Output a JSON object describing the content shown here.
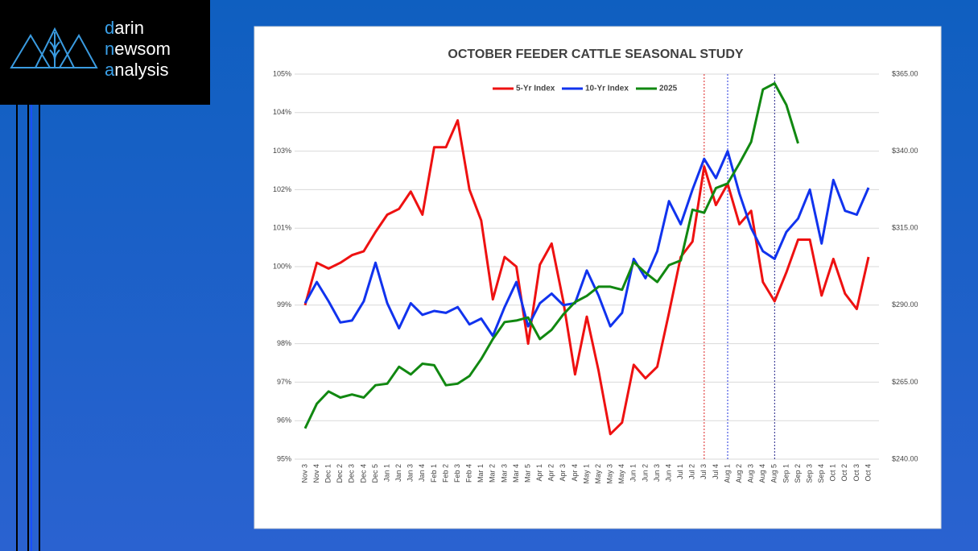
{
  "logo": [
    {
      "accent": "d",
      "rest": "arin"
    },
    {
      "accent": "n",
      "rest": "ewsom"
    },
    {
      "accent": "a",
      "rest": "nalysis"
    }
  ],
  "chart_data": {
    "type": "line",
    "title": "OCTOBER FEEDER CATTLE SEASONAL STUDY",
    "categories": [
      "Nov 3",
      "Nov 4",
      "Dec 1",
      "Dec 2",
      "Dec 3",
      "Dec 4",
      "Dec 5",
      "Jan 1",
      "Jan 2",
      "Jan 3",
      "Jan 4",
      "Feb 1",
      "Feb 2",
      "Feb 3",
      "Feb 4",
      "Mar 1",
      "Mar 2",
      "Mar 3",
      "Mar 4",
      "Mar 5",
      "Apr 1",
      "Apr 2",
      "Apr 3",
      "Apr 4",
      "May 1",
      "May 2",
      "May 3",
      "May 4",
      "Jun 1",
      "Jun 2",
      "Jun 3",
      "Jun 4",
      "Jul 1",
      "Jul 2",
      "Jul 3",
      "Jul 4",
      "Aug 1",
      "Aug 2",
      "Aug 3",
      "Aug 4",
      "Aug 5",
      "Sep 1",
      "Sep 2",
      "Sep 3",
      "Sep 4",
      "Oct 1",
      "Oct 2",
      "Oct 3",
      "Oct 4"
    ],
    "series": [
      {
        "name": "5-Yr Index",
        "color": "#ee1111",
        "values": [
          99.0,
          100.1,
          99.95,
          100.1,
          100.3,
          100.4,
          100.9,
          101.35,
          101.5,
          101.95,
          101.35,
          103.1,
          103.1,
          103.8,
          102.0,
          101.2,
          99.15,
          100.25,
          100.0,
          98.0,
          100.05,
          100.6,
          99.1,
          97.2,
          98.7,
          97.3,
          95.65,
          95.95,
          97.45,
          97.1,
          97.4,
          98.8,
          100.25,
          100.65,
          102.6,
          101.6,
          102.15,
          101.1,
          101.45,
          99.6,
          99.1,
          99.85,
          100.7,
          100.7,
          99.25,
          100.2,
          99.3,
          98.9,
          100.25
        ]
      },
      {
        "name": "10-Yr Index",
        "color": "#1133ee",
        "values": [
          99.05,
          99.6,
          99.1,
          98.55,
          98.6,
          99.1,
          100.1,
          99.05,
          98.4,
          99.05,
          98.75,
          98.85,
          98.8,
          98.95,
          98.5,
          98.65,
          98.2,
          98.95,
          99.6,
          98.45,
          99.05,
          99.3,
          99.0,
          99.05,
          99.9,
          99.25,
          98.45,
          98.8,
          100.2,
          99.7,
          100.4,
          101.7,
          101.1,
          102.0,
          102.8,
          102.3,
          103.0,
          101.9,
          101.0,
          100.4,
          100.2,
          100.9,
          101.25,
          102.0,
          100.6,
          102.25,
          101.45,
          101.35,
          102.05
        ]
      },
      {
        "name": "2025",
        "color": "#118811",
        "axis": "y2",
        "values": [
          250,
          258,
          262,
          260,
          261,
          260,
          264,
          264.5,
          270,
          267.5,
          271,
          270.5,
          264,
          264.5,
          267,
          272.5,
          279,
          284.5,
          285,
          286,
          279,
          282,
          287,
          291,
          293,
          296,
          296,
          295,
          304,
          300.5,
          297.5,
          303,
          304.5,
          321,
          320,
          328,
          329.5,
          336,
          343,
          360,
          362,
          355,
          342.5,
          null,
          null,
          null,
          null,
          null,
          null
        ]
      }
    ],
    "ylim": [
      95,
      105
    ],
    "yticks": [
      {
        "value": 95,
        "label": "95%"
      },
      {
        "value": 96,
        "label": "96%"
      },
      {
        "value": 97,
        "label": "97%"
      },
      {
        "value": 98,
        "label": "98%"
      },
      {
        "value": 99,
        "label": "99%"
      },
      {
        "value": 100,
        "label": "100%"
      },
      {
        "value": 101,
        "label": "101%"
      },
      {
        "value": 102,
        "label": "102%"
      },
      {
        "value": 103,
        "label": "103%"
      },
      {
        "value": 104,
        "label": "104%"
      },
      {
        "value": 105,
        "label": "105%"
      }
    ],
    "y2lim": [
      240,
      365
    ],
    "y2ticks": [
      {
        "value": 240,
        "label": "$240.00"
      },
      {
        "value": 265,
        "label": "$265.00"
      },
      {
        "value": 290,
        "label": "$290.00"
      },
      {
        "value": 315,
        "label": "$315.00"
      },
      {
        "value": 340,
        "label": "$340.00"
      },
      {
        "value": 365,
        "label": "$365.00"
      }
    ],
    "grid": true,
    "legend": "top",
    "reference_lines": [
      {
        "category": 34,
        "color": "#dd2222"
      },
      {
        "category": 36,
        "color": "#2233dd"
      },
      {
        "category": 40,
        "color": "#222288"
      }
    ]
  }
}
